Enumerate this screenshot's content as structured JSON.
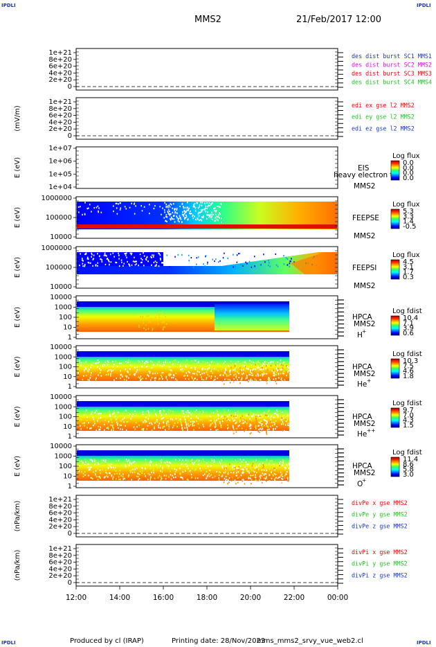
{
  "header": {
    "corner_left_top": "IPDLI",
    "corner_right_top": "IPDLI",
    "corner_left_bottom": "IPDLI",
    "corner_right_bottom": "IPDLI",
    "spacecraft": "MMS2",
    "date_time": "21/Feb/2017 12:00"
  },
  "footer": {
    "produced_by": "Produced by cl (IRAP)",
    "printing_date": "Printing date: 28/Nov/2023",
    "filename": "mms_mms2_srvy_vue_web2.cl"
  },
  "colors": {
    "red": "#ff0000",
    "green": "#19c819",
    "blue": "#0000ff",
    "magenta": "#ff00ff",
    "navy": "#1a33cc"
  },
  "chart_data": [
    {
      "type": "line",
      "name": "des-dist-burst",
      "ylabel": "",
      "ylim": [
        0,
        1.1e+21
      ],
      "ticks": [
        "1e+21",
        "8e+20",
        "6e+20",
        "4e+20",
        "2e+20",
        "0"
      ],
      "series": [
        {
          "name": "des dist burst SC1 MMS1",
          "color": "#1a33cc"
        },
        {
          "name": "des dist burst SC2 MMS2",
          "color": "#ff00ff"
        },
        {
          "name": "des dist burst SC3 MMS3",
          "color": "#ff0000"
        },
        {
          "name": "des dist burst SC4 MMS4",
          "color": "#19c819"
        }
      ]
    },
    {
      "type": "line",
      "name": "edi-e-gse",
      "ylabel": "(mV/m)",
      "ylim": [
        0,
        1.1e+21
      ],
      "ticks": [
        "1e+21",
        "8e+20",
        "6e+20",
        "4e+20",
        "2e+20",
        "0"
      ],
      "series": [
        {
          "name": "edi ex gse l2 MMS2",
          "color": "#ff0000"
        },
        {
          "name": "edi ey gse l2 MMS2",
          "color": "#19c819"
        },
        {
          "name": "edi ez gse l2 MMS2",
          "color": "#1a33cc"
        }
      ]
    },
    {
      "type": "heatmap",
      "name": "eis",
      "ylabel": "E (eV)",
      "scale": "log",
      "ticks": [
        "1e+07",
        "1e+06",
        "1e+05",
        "1e+04"
      ],
      "instrument": "EIS",
      "overlay_text": "heavy electron to",
      "spacecraft": "MMS2",
      "colorbar": {
        "title": "Log flux",
        "ticks": [
          "0.0",
          "0.0",
          "0.0",
          "0.0"
        ]
      }
    },
    {
      "type": "heatmap",
      "name": "feeps-e",
      "ylabel": "E (eV)",
      "scale": "log",
      "ticks": [
        "1000000",
        "100000",
        "10000"
      ],
      "instrument": "FEEPSE",
      "spacecraft": "MMS2",
      "colorbar": {
        "title": "Log flux",
        "ticks": [
          "5.3",
          "3.3",
          "1.4",
          "-0.5"
        ]
      }
    },
    {
      "type": "heatmap",
      "name": "feeps-i",
      "ylabel": "E (eV)",
      "scale": "log",
      "ticks": [
        "1000000",
        "100000",
        "10000"
      ],
      "instrument": "FEEPSI",
      "spacecraft": "MMS2",
      "colorbar": {
        "title": "Log flux",
        "ticks": [
          "4.5",
          "3.1",
          "1.7",
          "0.3"
        ]
      }
    },
    {
      "type": "heatmap",
      "name": "hpca-h",
      "ylabel": "E (eV)",
      "scale": "log",
      "ticks": [
        "10000",
        "1000",
        "100",
        "10",
        "1"
      ],
      "instrument": "HPCA",
      "spacecraft": "MMS2",
      "species": "H",
      "species_sup": "+",
      "colorbar": {
        "title": "Log fdist",
        "ticks": [
          "10.4",
          "7.1",
          "3.9",
          "0.6"
        ]
      }
    },
    {
      "type": "heatmap",
      "name": "hpca-he",
      "ylabel": "E (eV)",
      "scale": "log",
      "ticks": [
        "10000",
        "1000",
        "100",
        "10",
        "1"
      ],
      "instrument": "HPCA",
      "spacecraft": "MMS2",
      "species": "He",
      "species_sup": "+",
      "colorbar": {
        "title": "Log fdist",
        "ticks": [
          "10.3",
          "7.5",
          "4.6",
          "1.8"
        ]
      }
    },
    {
      "type": "heatmap",
      "name": "hpca-hepp",
      "ylabel": "E (eV)",
      "scale": "log",
      "ticks": [
        "10000",
        "1000",
        "100",
        "10",
        "1"
      ],
      "instrument": "HPCA",
      "spacecraft": "MMS2",
      "species": "He",
      "species_sup": "++",
      "colorbar": {
        "title": "Log fdist",
        "ticks": [
          "9.7",
          "7.0",
          "4.3",
          "1.5"
        ]
      }
    },
    {
      "type": "heatmap",
      "name": "hpca-o",
      "ylabel": "E (eV)",
      "scale": "log",
      "ticks": [
        "10000",
        "1000",
        "100",
        "10",
        "1"
      ],
      "instrument": "HPCA",
      "spacecraft": "MMS2",
      "species": "O",
      "species_sup": "+",
      "colorbar": {
        "title": "Log fdist",
        "ticks": [
          "11.4",
          "8.6",
          "5.8",
          "3.0"
        ]
      }
    },
    {
      "type": "line",
      "name": "divpe",
      "ylabel": "(nPa/km)",
      "ylim": [
        0,
        1.1e+21
      ],
      "ticks": [
        "1e+21",
        "8e+20",
        "6e+20",
        "4e+20",
        "2e+20",
        "0"
      ],
      "series": [
        {
          "name": "divPe x gse MMS2",
          "color": "#ff0000"
        },
        {
          "name": "divPe y gse MMS2",
          "color": "#19c819"
        },
        {
          "name": "divPe z gse MMS2",
          "color": "#1a33cc"
        }
      ]
    },
    {
      "type": "line",
      "name": "divpi",
      "ylabel": "(nPa/km)",
      "ylim": [
        0,
        1.1e+21
      ],
      "ticks": [
        "1e+21",
        "8e+20",
        "6e+20",
        "4e+20",
        "2e+20",
        "0"
      ],
      "series": [
        {
          "name": "divPi x gse MMS2",
          "color": "#ff0000"
        },
        {
          "name": "divPi y gse MMS2",
          "color": "#19c819"
        },
        {
          "name": "divPi z gse MMS2",
          "color": "#1a33cc"
        }
      ]
    }
  ],
  "time_axis": {
    "ticks": [
      "12:00",
      "14:00",
      "16:00",
      "18:00",
      "20:00",
      "22:00",
      "00:00"
    ]
  }
}
